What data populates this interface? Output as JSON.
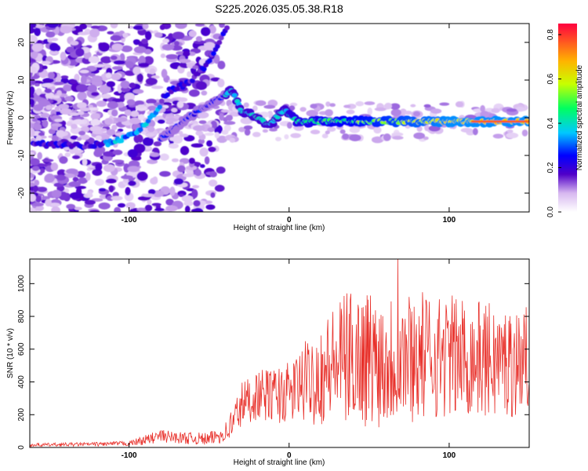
{
  "figure_title": "S225.2026.035.05.38.R18",
  "chart_data": [
    {
      "type": "heatmap",
      "title": "S225.2026.035.05.38.R18",
      "xlabel": "Height of straight line (km)",
      "ylabel": "Frequency (Hz)",
      "xlim": [
        -162,
        150
      ],
      "ylim": [
        -25,
        25
      ],
      "x_ticks": [
        "-100",
        "0",
        "100"
      ],
      "y_ticks": [
        "-20",
        "-10",
        "0",
        "10",
        "20"
      ],
      "colorbar": {
        "label": "Normalized spectral amplitude",
        "range": [
          0.0,
          0.85
        ],
        "ticks": [
          "0.0",
          "0.2",
          "0.4",
          "0.6",
          "0.8"
        ],
        "colormap": [
          "#ffffff",
          "#5000c8",
          "#0000ff",
          "#00c8ff",
          "#00ff60",
          "#c8ff00",
          "#ffb400",
          "#ff0040"
        ]
      },
      "ridges": [
        {
          "name": "main",
          "points": [
            [
              -160,
              -7
            ],
            [
              -140,
              -7
            ],
            [
              -125,
              -7.5
            ],
            [
              -112,
              -6.5
            ],
            [
              -100,
              -5
            ],
            [
              -95,
              -3.5
            ],
            [
              -88,
              -1
            ],
            [
              -82,
              2
            ],
            [
              -78,
              6
            ],
            [
              -72,
              8
            ],
            [
              -66,
              8.5
            ],
            [
              -60,
              10
            ],
            [
              -52,
              14
            ],
            [
              -45,
              19
            ],
            [
              -38,
              25
            ]
          ]
        },
        {
          "name": "secondary",
          "points": [
            [
              -80,
              -5.5
            ],
            [
              -72,
              -3
            ],
            [
              -66,
              -1
            ],
            [
              -58,
              1.5
            ],
            [
              -50,
              3.5
            ],
            [
              -42,
              5.5
            ],
            [
              -36,
              7.5
            ],
            [
              -30,
              2
            ],
            [
              -20,
              0
            ],
            [
              -12,
              -2
            ],
            [
              -6,
              1
            ],
            [
              -2,
              2
            ],
            [
              5,
              -1
            ],
            [
              20,
              -1
            ],
            [
              40,
              -1
            ],
            [
              60,
              -1
            ],
            [
              80,
              -1
            ],
            [
              100,
              -1
            ],
            [
              120,
              -1
            ],
            [
              150,
              -1
            ]
          ]
        }
      ]
    },
    {
      "type": "line",
      "xlabel": "Height of straight line (km)",
      "ylabel": "SNR (10 * v/v)",
      "xlim": [
        -162,
        150
      ],
      "ylim": [
        0,
        1150
      ],
      "x_ticks": [
        "-100",
        "0",
        "100"
      ],
      "y_ticks": [
        "0",
        "200",
        "400",
        "600",
        "800",
        "1000"
      ],
      "series": [
        {
          "name": "SNR",
          "color": "#e8302a",
          "envelope_x": [
            -162,
            -120,
            -100,
            -90,
            -80,
            -70,
            -50,
            -40,
            -35,
            -30,
            -20,
            -10,
            0,
            10,
            20,
            30,
            40,
            50,
            60,
            70,
            80,
            100,
            120,
            140,
            150
          ],
          "envelope_mean": [
            15,
            20,
            25,
            45,
            70,
            60,
            50,
            90,
            150,
            260,
            320,
            320,
            330,
            400,
            450,
            520,
            560,
            550,
            540,
            560,
            560,
            560,
            540,
            520,
            560
          ],
          "envelope_amp": [
            10,
            12,
            15,
            30,
            40,
            35,
            40,
            60,
            120,
            150,
            150,
            170,
            190,
            250,
            320,
            380,
            420,
            430,
            420,
            420,
            400,
            380,
            360,
            340,
            300
          ],
          "peak_value": 1150,
          "peak_x": 68
        }
      ]
    }
  ]
}
